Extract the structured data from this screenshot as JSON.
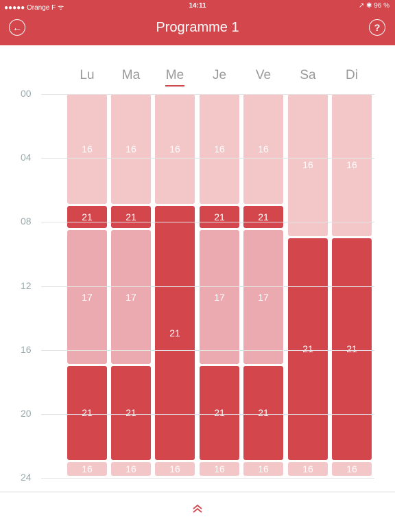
{
  "status": {
    "carrier": "●●●●● Orange F ᯤ",
    "time": "14:11",
    "battery": "↗ ✱ 96 %"
  },
  "header": {
    "title": "Programme 1",
    "back_icon": "←",
    "help_icon": "?"
  },
  "colors": {
    "comfort": "#d2464c",
    "eco": "#f3c6c8",
    "mid": "#ebaab0"
  },
  "days": [
    "Lu",
    "Ma",
    "Me",
    "Je",
    "Ve",
    "Sa",
    "Di"
  ],
  "hours": [
    "00",
    "04",
    "08",
    "12",
    "16",
    "20",
    "24"
  ],
  "schedule": [
    [
      {
        "start": 0,
        "end": 7,
        "t": "16"
      },
      {
        "start": 7,
        "end": 8.5,
        "t": "21"
      },
      {
        "start": 8.5,
        "end": 17,
        "t": "17"
      },
      {
        "start": 17,
        "end": 23,
        "t": "21"
      },
      {
        "start": 23,
        "end": 24,
        "t": "16"
      }
    ],
    [
      {
        "start": 0,
        "end": 7,
        "t": "16"
      },
      {
        "start": 7,
        "end": 8.5,
        "t": "21"
      },
      {
        "start": 8.5,
        "end": 17,
        "t": "17"
      },
      {
        "start": 17,
        "end": 23,
        "t": "21"
      },
      {
        "start": 23,
        "end": 24,
        "t": "16"
      }
    ],
    [
      {
        "start": 0,
        "end": 7,
        "t": "16"
      },
      {
        "start": 7,
        "end": 23,
        "t": "21"
      },
      {
        "start": 23,
        "end": 24,
        "t": "16"
      }
    ],
    [
      {
        "start": 0,
        "end": 7,
        "t": "16"
      },
      {
        "start": 7,
        "end": 8.5,
        "t": "21"
      },
      {
        "start": 8.5,
        "end": 17,
        "t": "17"
      },
      {
        "start": 17,
        "end": 23,
        "t": "21"
      },
      {
        "start": 23,
        "end": 24,
        "t": "16"
      }
    ],
    [
      {
        "start": 0,
        "end": 7,
        "t": "16"
      },
      {
        "start": 7,
        "end": 8.5,
        "t": "21"
      },
      {
        "start": 8.5,
        "end": 17,
        "t": "17"
      },
      {
        "start": 17,
        "end": 23,
        "t": "21"
      },
      {
        "start": 23,
        "end": 24,
        "t": "16"
      }
    ],
    [
      {
        "start": 0,
        "end": 9,
        "t": "16"
      },
      {
        "start": 9,
        "end": 23,
        "t": "21"
      },
      {
        "start": 23,
        "end": 24,
        "t": "16"
      }
    ],
    [
      {
        "start": 0,
        "end": 9,
        "t": "16"
      },
      {
        "start": 9,
        "end": 23,
        "t": "21"
      },
      {
        "start": 23,
        "end": 24,
        "t": "16"
      }
    ]
  ],
  "footer": {
    "expand_icon": "double-chevron-up-icon"
  }
}
